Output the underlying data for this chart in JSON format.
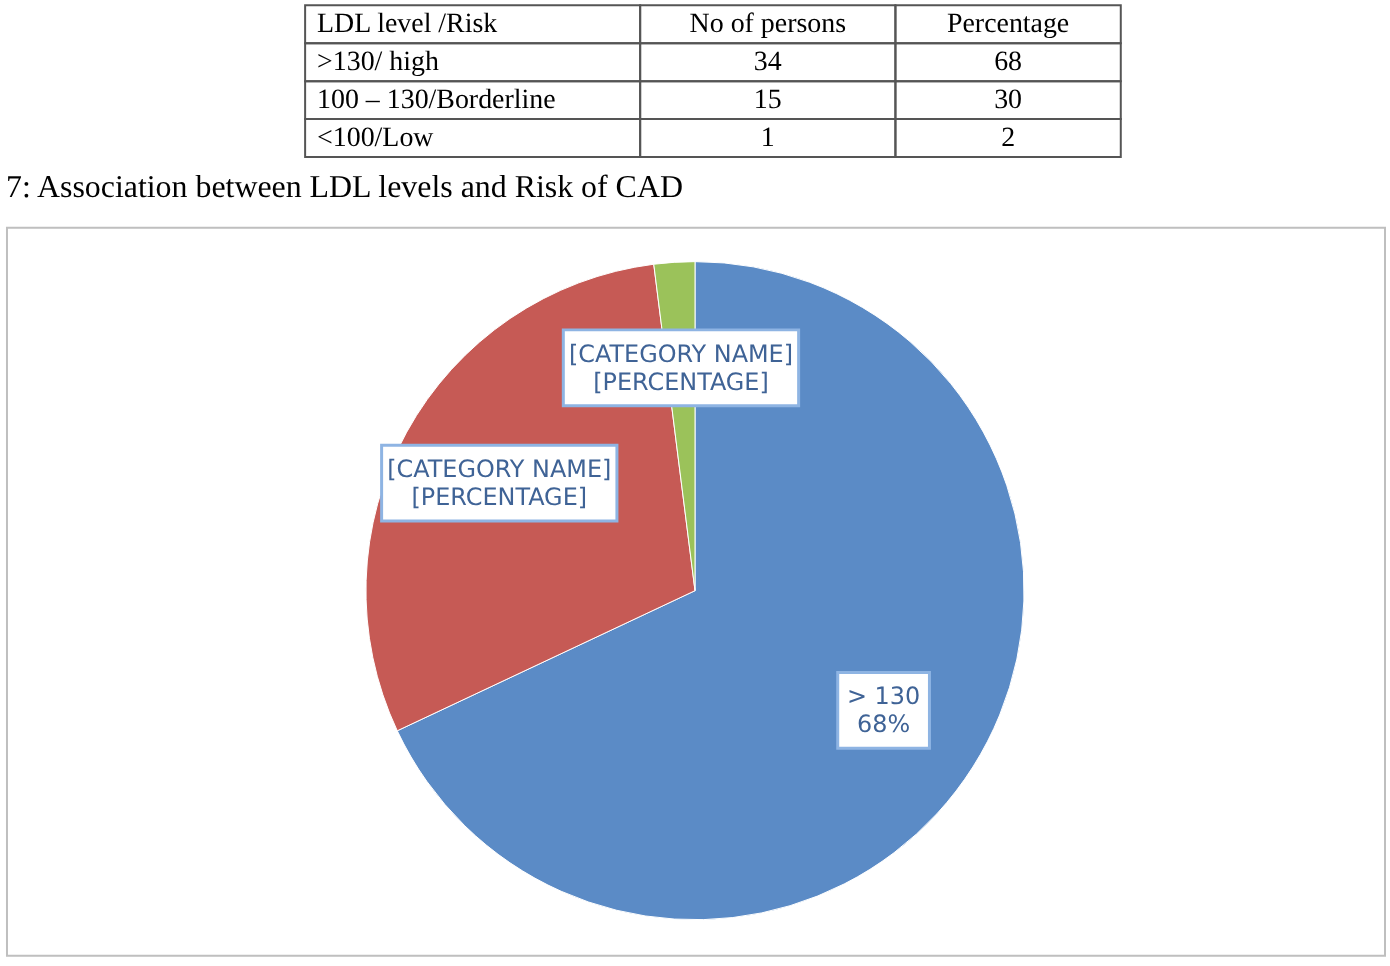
{
  "chart_data": {
    "type": "pie",
    "title": "7: Association between LDL levels and Risk of CAD",
    "categories": [
      "> 130",
      "[CATEGORY NAME]",
      "[CATEGORY NAME]"
    ],
    "values": [
      68,
      30,
      2
    ],
    "colors": [
      "#5b8bc6",
      "#c65a55",
      "#9bc25a"
    ],
    "value_labels": [
      "68%",
      "[PERCENTAGE]",
      "[PERCENTAGE]"
    ],
    "annotations": [
      "LDL level /Risk",
      "No of persons",
      "Percentage",
      ">130/ high",
      "34",
      "68",
      "100 – 130/Borderline",
      "15",
      "30",
      "<100/Low",
      "1",
      "2"
    ]
  }
}
